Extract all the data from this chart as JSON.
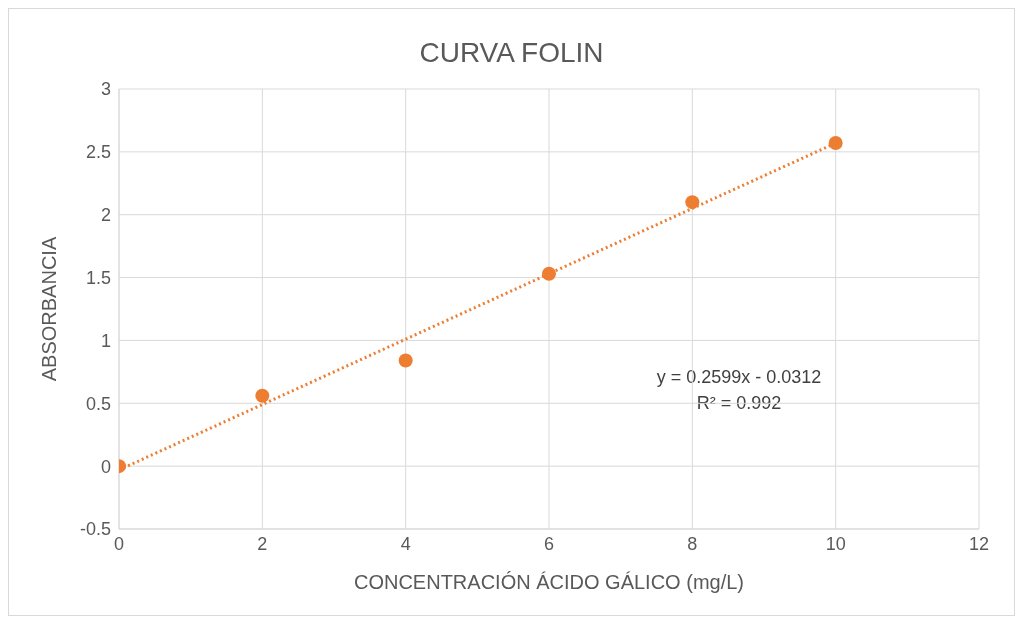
{
  "chart_data": {
    "type": "scatter",
    "title": "CURVA FOLIN",
    "xlabel": "CONCENTRACIÓN ÁCIDO GÁLICO (mg/L)",
    "ylabel": "ABSORBANCIA",
    "x": [
      0,
      2,
      4,
      6,
      8,
      10
    ],
    "series": [
      {
        "color": "#ed7d31",
        "values": [
          0,
          0.56,
          0.84,
          1.53,
          2.1,
          2.57
        ],
        "marker": "circle"
      },
      {
        "type": "line",
        "color": "#ed7d31",
        "x": [
          0,
          10
        ],
        "values": [
          -0.03,
          2.57
        ],
        "line_style": "dotted",
        "marker": "none"
      }
    ],
    "xlim": [
      0,
      12
    ],
    "xticks": [
      0,
      2,
      4,
      6,
      8,
      10,
      12
    ],
    "ylim": [
      -0.5,
      3
    ],
    "yticks": [
      -0.5,
      0,
      0.5,
      1,
      1.5,
      2,
      2.5,
      3
    ],
    "grid": true,
    "legend": false,
    "annotations": [
      "y = 0.2599x - 0.0312",
      "R² = 0.992"
    ]
  }
}
